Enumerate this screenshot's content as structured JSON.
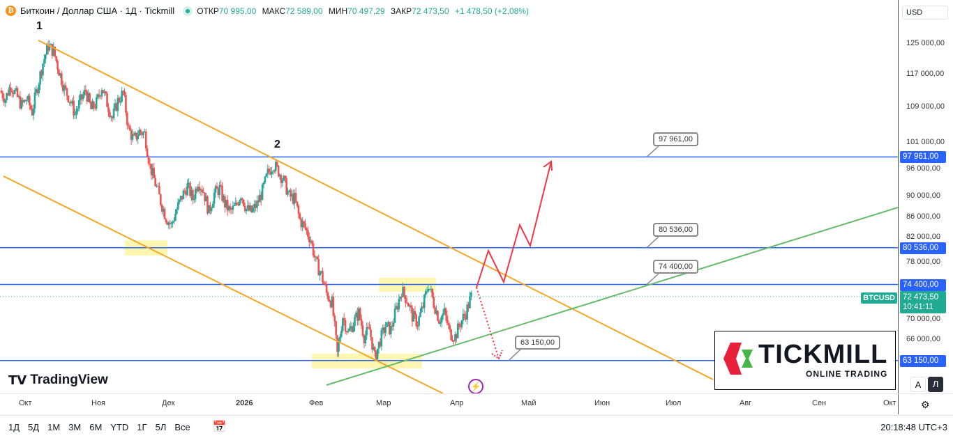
{
  "header": {
    "symbol_icon": "bitcoin-icon",
    "title": "Биткоин / Доллар США · 1Д · Tickmill",
    "open_label": "ОТКР",
    "open": "70 995,00",
    "high_label": "МАКС",
    "high": "72 589,00",
    "low_label": "МИН",
    "low": "70 497,29",
    "close_label": "ЗАКР",
    "close": "72 473,50",
    "change": "+1 478,50 (+2,08%)"
  },
  "currency": "USD",
  "price_ticks": [
    "125 000,00",
    "117 000,00",
    "109 000,00",
    "101 000,00",
    "96 000,00",
    "90 000,00",
    "86 000,00",
    "82 000,00",
    "78 000,00",
    "70 000,00",
    "66 000,00"
  ],
  "levels": [
    {
      "label": "97 961,00",
      "price": 97961
    },
    {
      "label": "80 536,00",
      "price": 80536
    },
    {
      "label": "74 400,00",
      "price": 74400
    },
    {
      "label": "63 150,00",
      "price": 63150
    }
  ],
  "current": {
    "symbol": "BTCUSD",
    "price": "72 473,50",
    "countdown": "10:41:11",
    "value": 72473.5
  },
  "time_labels": [
    "Окт",
    "Ноя",
    "Дек",
    "2026",
    "Фев",
    "Мар",
    "Апр",
    "Май",
    "Июн",
    "Июл",
    "Авг",
    "Сен",
    "Окт"
  ],
  "annotations": {
    "p1": "1",
    "p2": "2"
  },
  "branding": {
    "tradingview": "TradingView",
    "tickmill": "TICKMILL",
    "tickmill_sub": "ONLINE TRADING"
  },
  "scale_buttons": {
    "auto": "A",
    "log": "Л"
  },
  "bottom": {
    "ranges": [
      "1Д",
      "5Д",
      "1М",
      "3М",
      "6М",
      "YTD",
      "1Г",
      "5Л",
      "Все"
    ],
    "clock": "20:18:48 UTC+3"
  },
  "chart_data": {
    "type": "candlestick",
    "scale": "log",
    "colors": {
      "up": "#26a69a",
      "down": "#ef5350"
    },
    "closes": [
      113000,
      111000,
      114500,
      112000,
      109500,
      111000,
      108000,
      114000,
      120000,
      124500,
      123000,
      118000,
      113500,
      111000,
      107500,
      110500,
      113000,
      108500,
      110000,
      114000,
      110000,
      106500,
      110500,
      112500,
      104000,
      101500,
      103500,
      103000,
      96000,
      92500,
      89000,
      86000,
      84500,
      87500,
      90000,
      92000,
      89500,
      93000,
      91000,
      87000,
      90500,
      91500,
      88500,
      87000,
      88000,
      90500,
      87500,
      87000,
      88500,
      91000,
      94500,
      96500,
      95000,
      93000,
      90000,
      89500,
      85500,
      84000,
      82000,
      78000,
      76000,
      73000,
      71500,
      64000,
      69500,
      67000,
      68500,
      70000,
      66500,
      67500,
      63500,
      66000,
      68000,
      67500,
      70500,
      73500,
      72000,
      69500,
      68500,
      71000,
      74500,
      71500,
      69000,
      70000,
      67000,
      66500,
      68500,
      70000,
      72473
    ]
  }
}
